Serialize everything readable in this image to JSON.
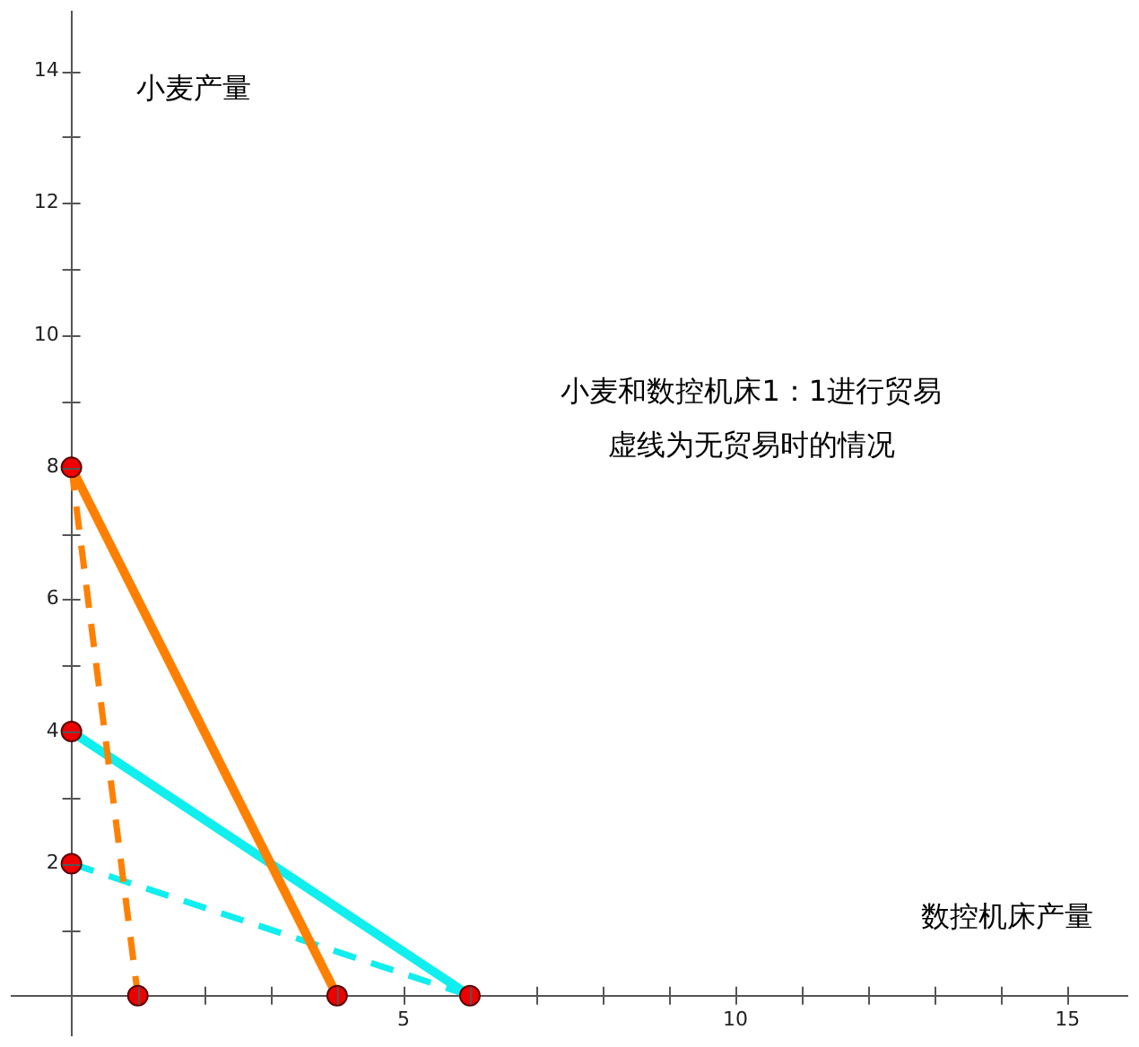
{
  "chart_data": {
    "type": "line",
    "xlabel": "数控机床产量",
    "ylabel": "小麦产量",
    "annotations": [
      "小麦和数控机床1：1进行贸易",
      "虚线为无贸易时的情况"
    ],
    "xlim": [
      -0.9,
      15.9
    ],
    "ylim": [
      -0.6,
      14.9
    ],
    "xticks": [
      {
        "value": 1,
        "label": null
      },
      {
        "value": 2,
        "label": null
      },
      {
        "value": 3,
        "label": null
      },
      {
        "value": 4,
        "label": null
      },
      5,
      {
        "value": 6,
        "label": null
      },
      {
        "value": 7,
        "label": null
      },
      {
        "value": 8,
        "label": null
      },
      {
        "value": 9,
        "label": null
      },
      10,
      {
        "value": 11,
        "label": null
      },
      {
        "value": 12,
        "label": null
      },
      {
        "value": 13,
        "label": null
      },
      {
        "value": 14,
        "label": null
      },
      15
    ],
    "yticks": [
      {
        "value": 1,
        "label": null
      },
      2,
      {
        "value": 3,
        "label": null
      },
      4,
      {
        "value": 5,
        "label": null
      },
      6,
      {
        "value": 7,
        "label": null
      },
      8,
      {
        "value": 9,
        "label": null
      },
      10,
      {
        "value": 11,
        "label": null
      },
      12,
      {
        "value": 13,
        "label": null
      },
      14
    ],
    "series": [
      {
        "color": "#ff8000",
        "line_style": "solid",
        "x": [
          0,
          4
        ],
        "values": [
          8,
          0
        ]
      },
      {
        "color": "#ff8000",
        "line_style": "dashed",
        "x": [
          0,
          1
        ],
        "values": [
          8,
          0
        ]
      },
      {
        "color": "#10eeee",
        "line_style": "solid",
        "x": [
          0,
          6
        ],
        "values": [
          4,
          0
        ]
      },
      {
        "color": "#10eeee",
        "line_style": "dashed",
        "x": [
          0,
          6
        ],
        "values": [
          2,
          0
        ]
      },
      {
        "type": "scatter",
        "color": "#ee0000",
        "marker": "circle",
        "x": [
          0,
          0,
          0,
          1,
          4,
          6
        ],
        "values": [
          8,
          4,
          2,
          0,
          0,
          0
        ]
      }
    ]
  }
}
